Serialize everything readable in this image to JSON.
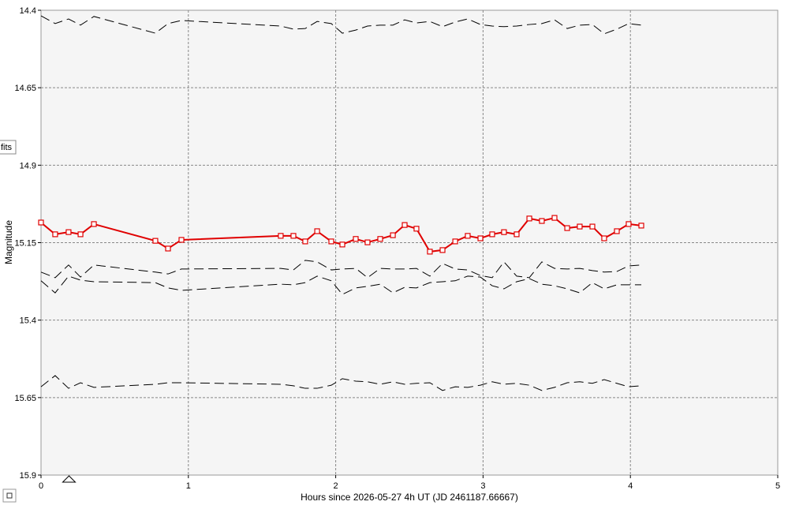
{
  "chart_data": {
    "type": "line",
    "x_label": "Hours since 2026-05-27 4h UT (JD 2461187.66667)",
    "y_label": "Magnitude",
    "fits_button": "fits",
    "x": [
      0,
      0.096,
      0.187,
      0.268,
      0.359,
      0.776,
      0.862,
      0.953,
      1.627,
      1.713,
      1.793,
      1.874,
      1.97,
      2.045,
      2.136,
      2.216,
      2.302,
      2.388,
      2.468,
      2.548,
      2.639,
      2.725,
      2.811,
      2.896,
      2.982,
      3.062,
      3.142,
      3.228,
      3.314,
      3.399,
      3.485,
      3.571,
      3.656,
      3.742,
      3.822,
      3.908,
      3.988,
      4.074
    ],
    "series": [
      {
        "color": "#000000",
        "dashed": true,
        "markers": false,
        "values": [
          14.418,
          14.443,
          14.428,
          14.448,
          14.42,
          14.474,
          14.443,
          14.433,
          14.451,
          14.461,
          14.459,
          14.436,
          14.443,
          14.474,
          14.464,
          14.451,
          14.448,
          14.448,
          14.431,
          14.441,
          14.436,
          14.453,
          14.438,
          14.428,
          14.446,
          14.451,
          14.453,
          14.451,
          14.446,
          14.443,
          14.431,
          14.459,
          14.448,
          14.446,
          14.476,
          14.461,
          14.443,
          14.448
        ]
      },
      {
        "color": "#000000",
        "dashed": true,
        "markers": false,
        "values": [
          15.245,
          15.263,
          15.222,
          15.261,
          15.222,
          15.245,
          15.251,
          15.235,
          15.233,
          15.238,
          15.207,
          15.212,
          15.238,
          15.235,
          15.233,
          15.263,
          15.233,
          15.235,
          15.235,
          15.233,
          15.258,
          15.217,
          15.235,
          15.238,
          15.256,
          15.263,
          15.212,
          15.258,
          15.263,
          15.212,
          15.233,
          15.235,
          15.233,
          15.24,
          15.245,
          15.243,
          15.225,
          15.222
        ]
      },
      {
        "color": "#000000",
        "dashed": true,
        "markers": false,
        "values": [
          15.273,
          15.312,
          15.258,
          15.271,
          15.276,
          15.279,
          15.296,
          15.304,
          15.284,
          15.286,
          15.279,
          15.258,
          15.273,
          15.317,
          15.296,
          15.291,
          15.284,
          15.312,
          15.294,
          15.296,
          15.279,
          15.276,
          15.273,
          15.258,
          15.261,
          15.289,
          15.299,
          15.276,
          15.266,
          15.284,
          15.289,
          15.299,
          15.312,
          15.279,
          15.299,
          15.286,
          15.286,
          15.286
        ]
      },
      {
        "color": "#000000",
        "dashed": true,
        "markers": false,
        "values": [
          15.615,
          15.579,
          15.62,
          15.602,
          15.617,
          15.607,
          15.602,
          15.602,
          15.607,
          15.612,
          15.62,
          15.62,
          15.61,
          15.589,
          15.597,
          15.599,
          15.607,
          15.599,
          15.607,
          15.604,
          15.602,
          15.627,
          15.615,
          15.617,
          15.61,
          15.599,
          15.607,
          15.604,
          15.61,
          15.627,
          15.617,
          15.602,
          15.599,
          15.604,
          15.592,
          15.604,
          15.615,
          15.612
        ]
      },
      {
        "color": "#e00000",
        "dashed": false,
        "markers": true,
        "values": [
          15.085,
          15.123,
          15.116,
          15.123,
          15.09,
          15.144,
          15.169,
          15.141,
          15.128,
          15.128,
          15.146,
          15.113,
          15.146,
          15.156,
          15.138,
          15.149,
          15.138,
          15.126,
          15.093,
          15.105,
          15.179,
          15.174,
          15.146,
          15.128,
          15.136,
          15.123,
          15.116,
          15.123,
          15.072,
          15.08,
          15.07,
          15.103,
          15.098,
          15.098,
          15.136,
          15.113,
          15.09,
          15.095
        ]
      }
    ],
    "marker_x": 0.19,
    "xlim": [
      0,
      5
    ],
    "xticks": [
      0,
      1,
      2,
      3,
      4,
      5
    ],
    "ylim": [
      15.9,
      14.4
    ],
    "yticks": [
      14.4,
      14.65,
      14.9,
      15.15,
      15.4,
      15.65,
      15.9
    ],
    "grid": true
  }
}
